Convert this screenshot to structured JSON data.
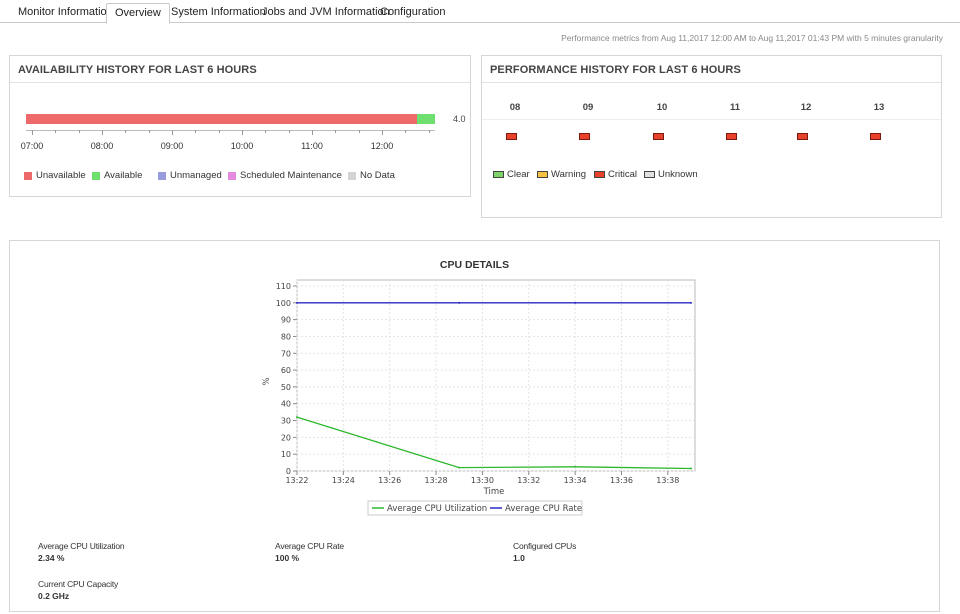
{
  "tabs": [
    {
      "label": "Monitor Information",
      "active": false
    },
    {
      "label": "Overview",
      "active": true
    },
    {
      "label": "System Information",
      "active": false
    },
    {
      "label": "Jobs and JVM Information",
      "active": false
    },
    {
      "label": "Configuration",
      "active": false
    }
  ],
  "metrics_note": "Performance metrics from Aug 11,2017 12:00 AM to Aug 11,2017 01:43 PM with 5 minutes granularity",
  "availability": {
    "title": "AVAILABILITY HISTORY FOR LAST 6 HOURS",
    "value_label": "4.0",
    "available_fraction": 0.043,
    "time_labels": [
      "07:00",
      "08:00",
      "09:00",
      "10:00",
      "11:00",
      "12:00"
    ],
    "legend": [
      {
        "label": "Unavailable",
        "color": "#ee6a6a"
      },
      {
        "label": "Available",
        "color": "#6fe06f"
      },
      {
        "label": "Unmanaged",
        "color": "#9b9be0"
      },
      {
        "label": "Scheduled Maintenance",
        "color": "#e48be4"
      },
      {
        "label": "No Data",
        "color": "#d3d3d3"
      }
    ]
  },
  "performance": {
    "title": "PERFORMANCE HISTORY FOR LAST 6 HOURS",
    "hours": [
      "08",
      "09",
      "10",
      "11",
      "12",
      "13"
    ],
    "status": [
      "critical",
      "critical",
      "critical",
      "critical",
      "critical",
      "critical"
    ],
    "legend": [
      {
        "label": "Clear",
        "color": "#7dd36a"
      },
      {
        "label": "Warning",
        "color": "#f5c242"
      },
      {
        "label": "Critical",
        "color": "#e8412c"
      },
      {
        "label": "Unknown",
        "color": "#e0e0e0"
      }
    ]
  },
  "cpu": {
    "title": "CPU DETAILS",
    "stats": [
      {
        "label": "Average CPU Utilization",
        "value": "2.34 %"
      },
      {
        "label": "Average CPU Rate",
        "value": "100 %"
      },
      {
        "label": "Configured CPUs",
        "value": "1.0"
      },
      {
        "label": "Current CPU Capacity",
        "value": "0.2 GHz"
      }
    ]
  },
  "chart_data": {
    "type": "line",
    "title": "CPU DETAILS",
    "xlabel": "Time",
    "ylabel": "%",
    "ylim": [
      0,
      110
    ],
    "yticks": [
      0,
      10,
      20,
      30,
      40,
      50,
      60,
      70,
      80,
      90,
      100,
      110
    ],
    "xlim": [
      "13:22",
      "13:39"
    ],
    "xticks": [
      "13:22",
      "13:24",
      "13:26",
      "13:28",
      "13:30",
      "13:32",
      "13:34",
      "13:36",
      "13:38"
    ],
    "grid": true,
    "legend_position": "bottom",
    "series": [
      {
        "name": "Average CPU Utilization",
        "color": "#2db82d",
        "points": [
          [
            "13:22",
            32
          ],
          [
            "13:29",
            2
          ],
          [
            "13:34",
            2.5
          ],
          [
            "13:39",
            1.5
          ]
        ]
      },
      {
        "name": "Average CPU Rate",
        "color": "#2a2ac2",
        "points": [
          [
            "13:22",
            100
          ],
          [
            "13:29",
            100
          ],
          [
            "13:34",
            100
          ],
          [
            "13:39",
            100
          ]
        ]
      }
    ]
  }
}
